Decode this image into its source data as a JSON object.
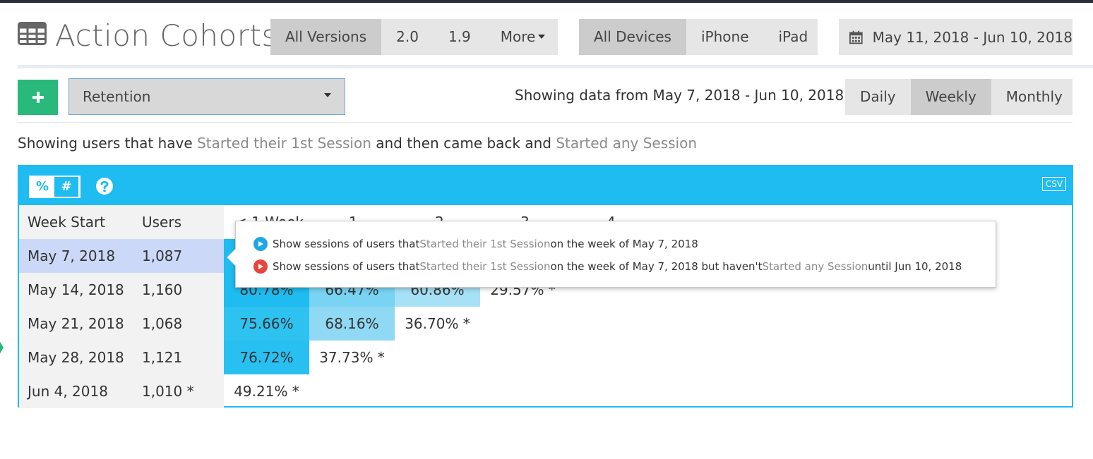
{
  "page": {
    "title": "Action Cohorts"
  },
  "versions": {
    "options": [
      "All Versions",
      "2.0",
      "1.9"
    ],
    "more_label": "More",
    "selected": "All Versions"
  },
  "devices": {
    "options": [
      "All Devices",
      "iPhone",
      "iPad"
    ],
    "selected": "All Devices"
  },
  "date_range": {
    "label": "May 11, 2018 - Jun 10, 2018"
  },
  "metric": {
    "selected": "Retention"
  },
  "showing": {
    "text": "Showing data from May 7, 2018 - Jun 10, 2018"
  },
  "period": {
    "options": [
      "Daily",
      "Weekly",
      "Monthly"
    ],
    "selected": "Weekly"
  },
  "description": {
    "prefix": "Showing users that have ",
    "first_action": "Started their 1st Session",
    "middle": " and then came back and ",
    "second_action": "Started any Session"
  },
  "panel": {
    "toggle_percent": "%",
    "toggle_number": "#",
    "csv_label": "CSV"
  },
  "table": {
    "headers": {
      "week": "Week Start",
      "users": "Users",
      "periods": [
        "< 1 Week",
        "1",
        "2",
        "3",
        "4"
      ]
    },
    "rows": [
      {
        "week": "May 7, 2018",
        "users": "1,087",
        "values": []
      },
      {
        "week": "May 14, 2018",
        "users": "1,160",
        "values": [
          "80.78%",
          "66.47%",
          "60.86%",
          "29.57% *"
        ]
      },
      {
        "week": "May 21, 2018",
        "users": "1,068",
        "values": [
          "75.66%",
          "68.16%",
          "36.70% *"
        ]
      },
      {
        "week": "May 28, 2018",
        "users": "1,121",
        "values": [
          "76.72%",
          "37.73% *"
        ]
      },
      {
        "week": "Jun 4, 2018",
        "users": "1,010 *",
        "values": [
          "49.21% *"
        ]
      }
    ]
  },
  "tooltip": {
    "line1": {
      "prefix": "Show sessions of users that ",
      "action": "Started their 1st Session",
      "suffix": " on the week of May 7, 2018"
    },
    "line2": {
      "prefix": "Show sessions of users that ",
      "action": "Started their 1st Session",
      "middle": " on the week of May 7, 2018 but haven't ",
      "action2": "Started any Session",
      "suffix": " until Jun 10, 2018"
    }
  },
  "colors": {
    "accent": "#1ebcf0",
    "add_button": "#28b97b",
    "selected_row": "#ccd8f7"
  }
}
